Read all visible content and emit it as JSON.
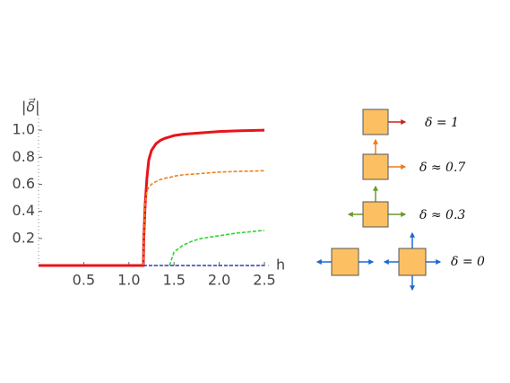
{
  "chart_data": {
    "type": "line",
    "y_label": "|δ⃗|",
    "x_label": "h",
    "x": [
      0,
      1.16,
      1.165,
      1.18,
      1.2,
      1.22,
      1.25,
      1.3,
      1.35,
      1.4,
      1.45,
      1.5,
      1.6,
      1.7,
      1.8,
      2.0,
      2.2,
      2.5
    ],
    "series": [
      {
        "color": "#e8141a",
        "dash": false,
        "values": [
          0,
          0,
          0.2,
          0.45,
          0.65,
          0.78,
          0.85,
          0.9,
          0.925,
          0.94,
          0.95,
          0.96,
          0.97,
          0.975,
          0.98,
          0.99,
          0.995,
          1.0
        ]
      },
      {
        "color": "#f08020",
        "dash": true,
        "values": [
          null,
          0,
          0.2,
          0.45,
          0.55,
          0.58,
          0.6,
          0.62,
          0.635,
          0.645,
          0.65,
          0.66,
          0.67,
          0.675,
          0.68,
          0.69,
          0.695,
          0.7
        ]
      },
      {
        "color": "#2ed62e",
        "dash": true,
        "values": [
          null,
          null,
          null,
          null,
          null,
          null,
          null,
          null,
          null,
          null,
          0,
          0.1,
          0.15,
          0.18,
          0.2,
          0.22,
          0.24,
          0.26
        ]
      },
      {
        "color": "#2a3fb0",
        "dash": true,
        "values": [
          null,
          0,
          0,
          0,
          0,
          0,
          0,
          0,
          0,
          0,
          0,
          0,
          0,
          0,
          0,
          0,
          0,
          0
        ]
      }
    ],
    "xlim": [
      0,
      2.5
    ],
    "ylim": [
      0,
      1.1
    ],
    "xticks": [
      0.5,
      {
        "value": 1,
        "label": "1.0"
      },
      1.5,
      {
        "value": 2,
        "label": "2.0"
      },
      2.5
    ],
    "yticks": [
      0.2,
      0.4,
      0.6,
      0.8,
      {
        "value": 1,
        "label": "1.0"
      }
    ]
  },
  "diagram": {
    "labels": [
      "δ = 1",
      "δ ≈ 0.7",
      "δ ≈ 0.3",
      "δ = 0"
    ]
  }
}
